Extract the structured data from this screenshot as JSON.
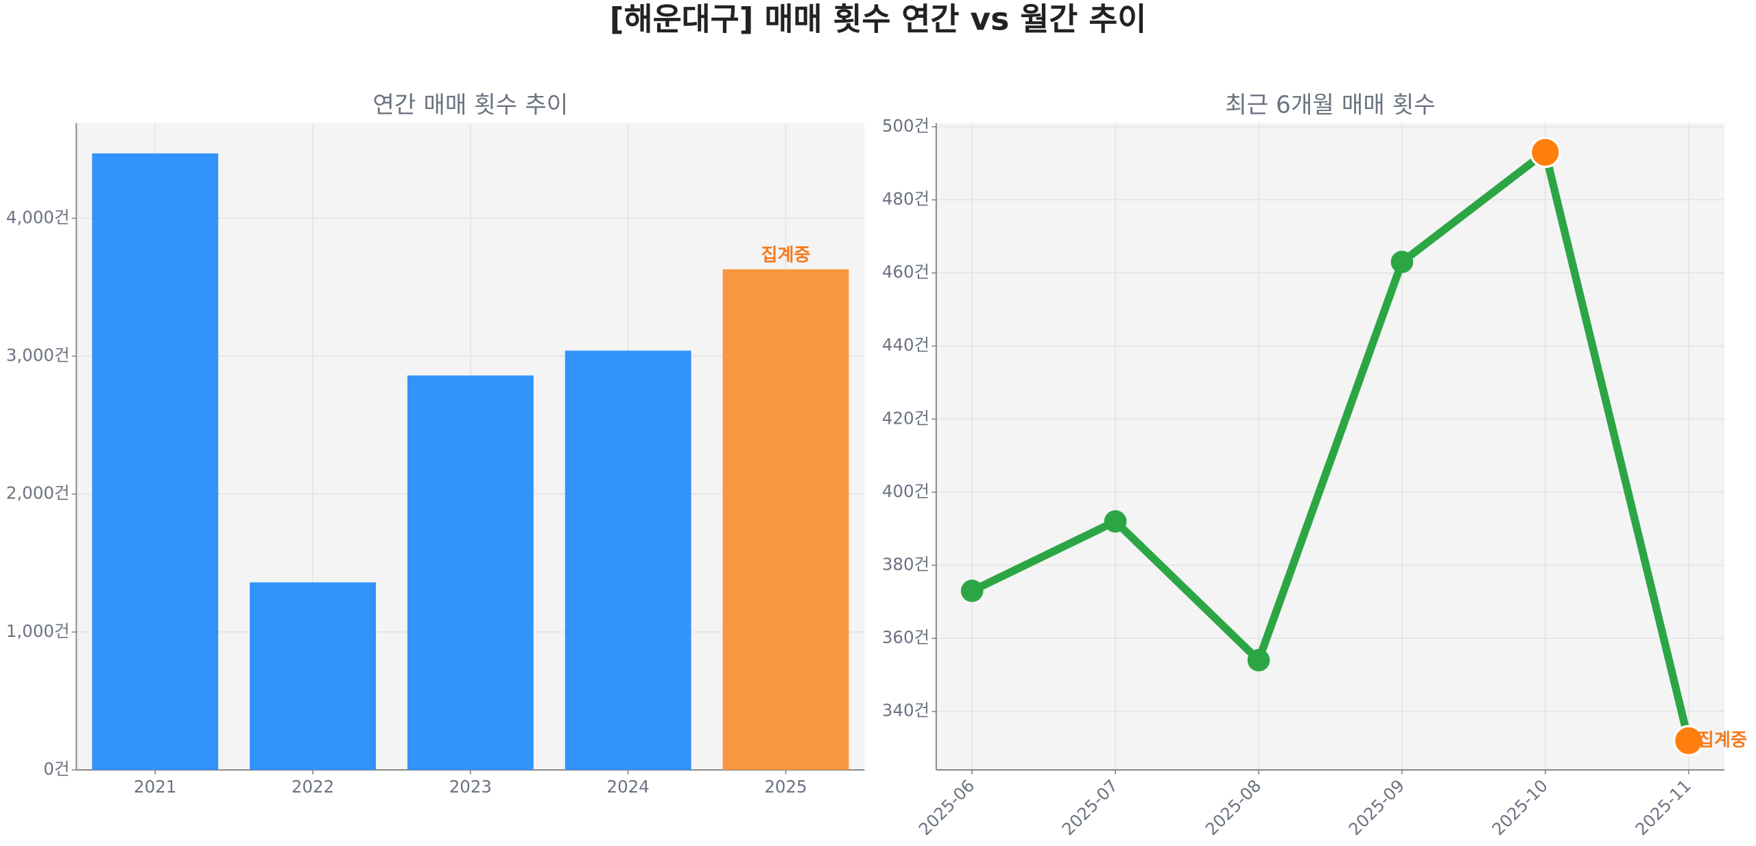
{
  "title": "[해운대구] 매매 횟수 연간 vs 월간 추이",
  "chart_data": [
    {
      "type": "bar",
      "title": "연간 매매 횟수 추이",
      "categories": [
        "2021",
        "2022",
        "2023",
        "2024",
        "2025"
      ],
      "values": [
        4470,
        1360,
        2860,
        3040,
        3630
      ],
      "colors": [
        "#3193fb",
        "#3193fb",
        "#3193fb",
        "#3193fb",
        "#f99640"
      ],
      "annotation": {
        "text": "집계중",
        "category": "2025",
        "color": "#f47a1f"
      },
      "ylim": [
        0,
        4690
      ],
      "yticks": [
        {
          "value": 0,
          "label": "0건"
        },
        {
          "value": 1000,
          "label": "1,000건"
        },
        {
          "value": 2000,
          "label": "2,000건"
        },
        {
          "value": 3000,
          "label": "3,000건"
        },
        {
          "value": 4000,
          "label": "4,000건"
        }
      ],
      "grid": true
    },
    {
      "type": "line",
      "title": "최근 6개월 매매 횟수",
      "categories": [
        "2025-06",
        "2025-07",
        "2025-08",
        "2025-09",
        "2025-10",
        "2025-11"
      ],
      "values": [
        373,
        392,
        354,
        463,
        493,
        332
      ],
      "color": "#2ca644",
      "marker_colors": [
        "#2ca644",
        "#2ca644",
        "#2ca644",
        "#2ca644",
        "#ff7f0e",
        "#ff7f0e"
      ],
      "annotation": {
        "text": "집계중",
        "category": "2025-11",
        "color": "#f47a1f"
      },
      "ylim": [
        324,
        501
      ],
      "yticks": [
        {
          "value": 340,
          "label": "340건"
        },
        {
          "value": 360,
          "label": "360건"
        },
        {
          "value": 380,
          "label": "380건"
        },
        {
          "value": 400,
          "label": "400건"
        },
        {
          "value": 420,
          "label": "420건"
        },
        {
          "value": 440,
          "label": "440건"
        },
        {
          "value": 460,
          "label": "460건"
        },
        {
          "value": 480,
          "label": "480건"
        },
        {
          "value": 500,
          "label": "500건"
        }
      ],
      "grid": true
    }
  ]
}
